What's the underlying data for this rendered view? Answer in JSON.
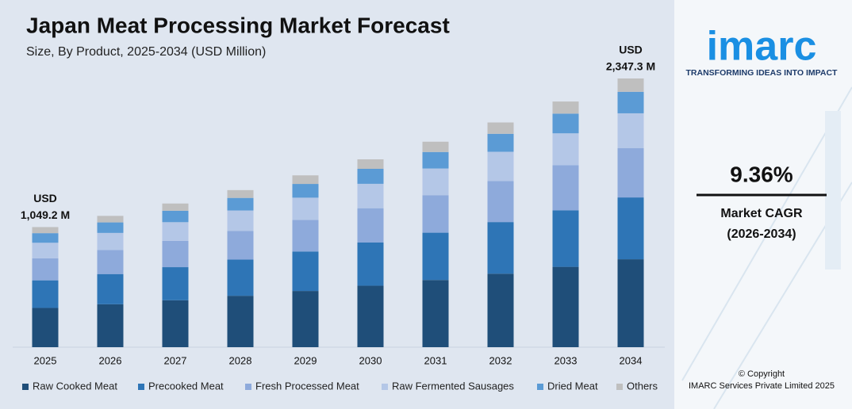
{
  "chart_data": {
    "type": "stacked-bar",
    "title": "Japan Meat Processing Market Forecast",
    "subtitle": "Size, By Product, 2025-2034 (USD Million)",
    "categories": [
      "2025",
      "2026",
      "2027",
      "2028",
      "2029",
      "2030",
      "2031",
      "2032",
      "2033",
      "2034"
    ],
    "series": [
      {
        "name": "Raw Cooked Meat",
        "color": "#1f4e79",
        "values": [
          343,
          375,
          410,
          449,
          491,
          537,
          587,
          642,
          702,
          768
        ]
      },
      {
        "name": "Precooked Meat",
        "color": "#2e75b6",
        "values": [
          241,
          264,
          289,
          316,
          345,
          377,
          413,
          451,
          494,
          540
        ]
      },
      {
        "name": "Fresh Processed Meat",
        "color": "#8eaadb",
        "values": [
          192,
          210,
          230,
          251,
          275,
          300,
          328,
          359,
          393,
          430
        ]
      },
      {
        "name": "Raw Fermented Sausages",
        "color": "#b4c7e7",
        "values": [
          136,
          149,
          163,
          178,
          195,
          213,
          233,
          255,
          279,
          305
        ]
      },
      {
        "name": "Dried Meat",
        "color": "#5b9bd5",
        "values": [
          84,
          92,
          100,
          110,
          120,
          131,
          144,
          157,
          172,
          188
        ]
      },
      {
        "name": "Others",
        "color": "#bfbfbf",
        "values": [
          53.2,
          57,
          63,
          68,
          75,
          83,
          90,
          99,
          106,
          116.3
        ]
      }
    ],
    "annotations": [
      {
        "x": "2025",
        "lines": [
          "USD",
          "1,049.2 M"
        ]
      },
      {
        "x": "2034",
        "lines": [
          "USD",
          "2,347.3 M"
        ]
      }
    ],
    "legend": "bottom"
  },
  "sidebar": {
    "logo": "imarc",
    "tagline": "TRANSFORMING IDEAS INTO IMPACT",
    "cagr": "9.36%",
    "cagr_label": "Market CAGR",
    "cagr_period": "(2026-2034)",
    "copyright": "© Copyright",
    "company": "IMARC Services Private Limited 2025"
  }
}
